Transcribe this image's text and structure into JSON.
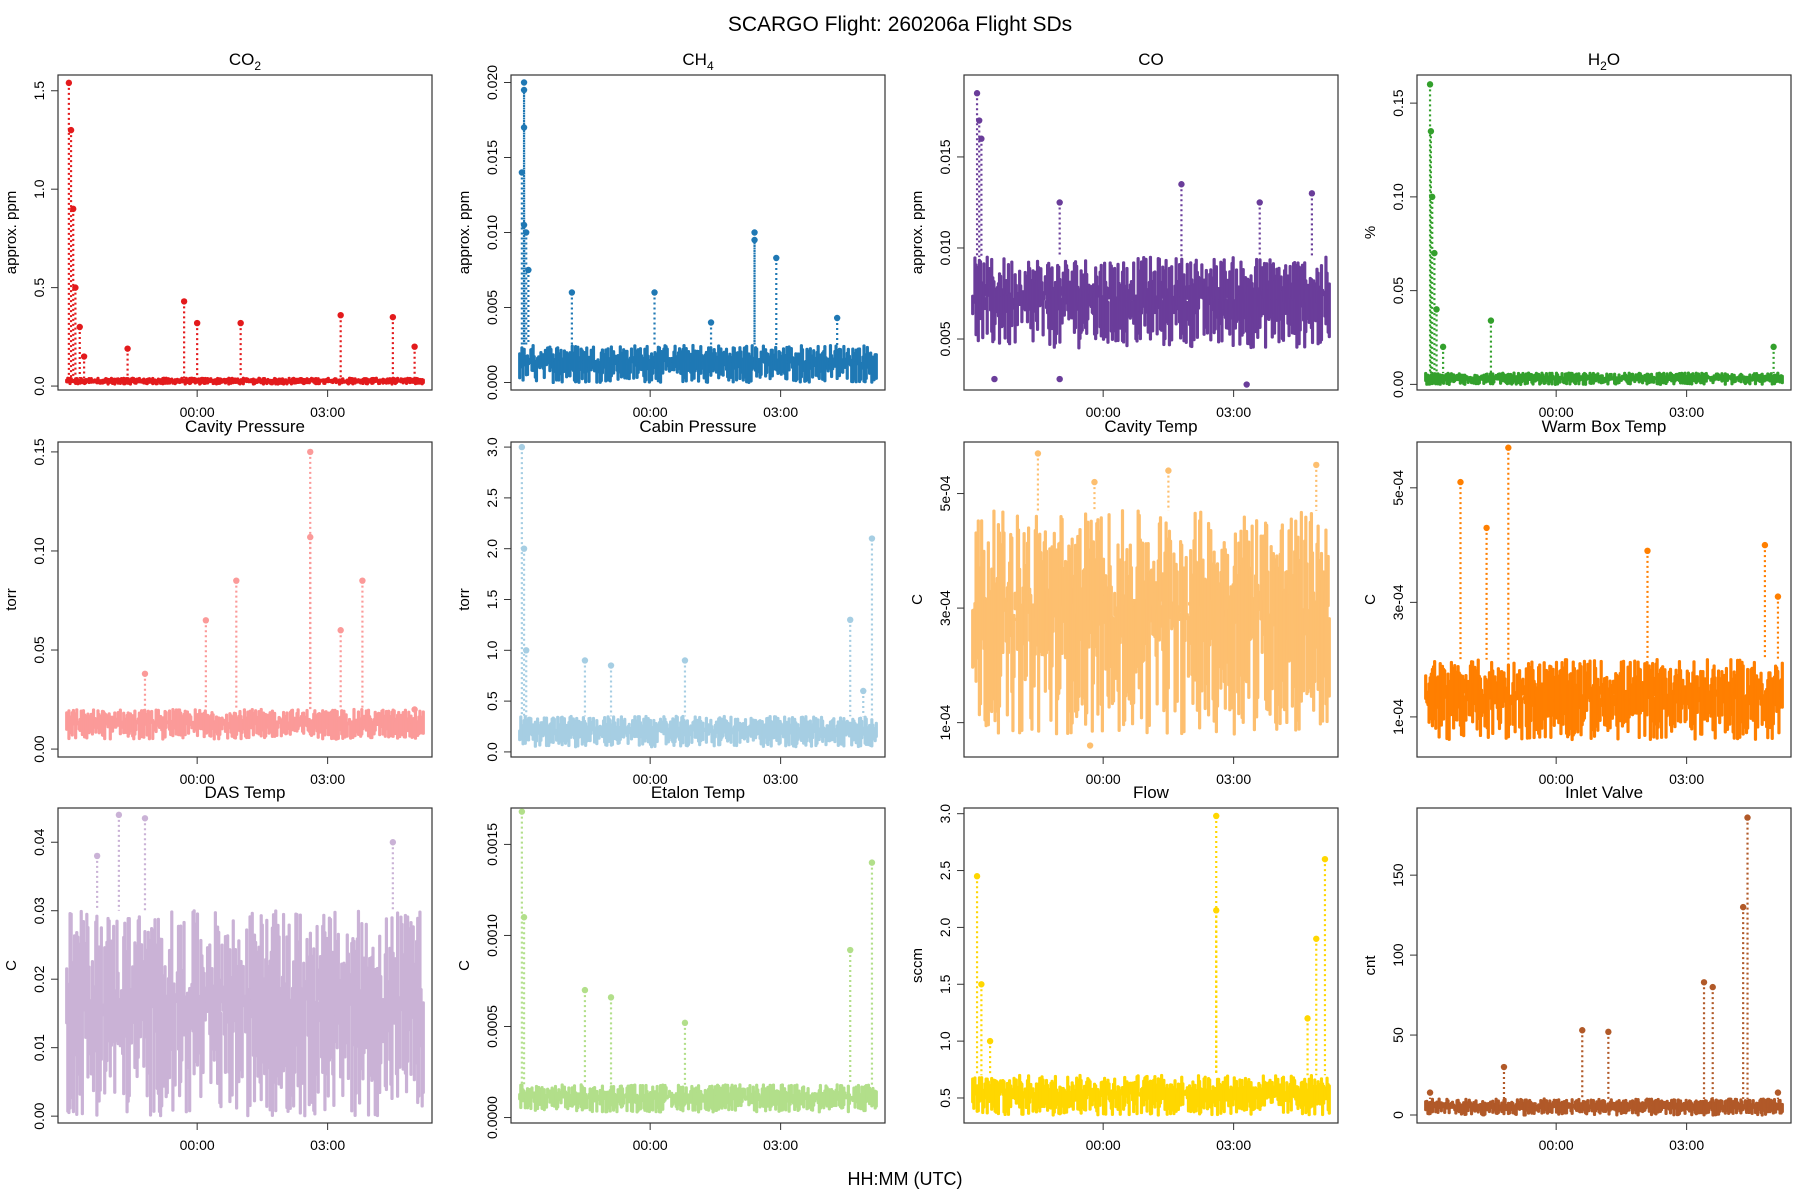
{
  "title": "SCARGO Flight: 260206a  Flight SDs",
  "xlabel": "HH:MM (UTC)",
  "x_tick_labels": [
    "00:00",
    "03:00"
  ],
  "chart_data": [
    {
      "type": "scatter",
      "title_main": "CO",
      "title_sub": "2",
      "ylabel": "approx. ppm",
      "color": "#e31a1c",
      "ylim": [
        -0.02,
        1.58
      ],
      "yticks": [
        0.0,
        0.5,
        1.0,
        1.5
      ],
      "ytick_labels": [
        "0.0",
        "0.5",
        "1.0",
        "1.5"
      ],
      "x_range_hours": [
        -3.2,
        5.4
      ],
      "x_ticks_hours": [
        0,
        3
      ],
      "baseline": [
        0.01,
        0.04
      ],
      "points": [
        [
          -2.95,
          1.54
        ],
        [
          -2.9,
          1.3
        ],
        [
          -2.85,
          0.9
        ],
        [
          -2.8,
          0.5
        ],
        [
          -2.7,
          0.3
        ],
        [
          -2.6,
          0.15
        ],
        [
          -1.6,
          0.19
        ],
        [
          -0.3,
          0.43
        ],
        [
          0.0,
          0.32
        ],
        [
          1.0,
          0.32
        ],
        [
          3.3,
          0.36
        ],
        [
          4.5,
          0.35
        ],
        [
          5.0,
          0.2
        ]
      ]
    },
    {
      "type": "scatter",
      "title_main": "CH",
      "title_sub": "4",
      "ylabel": "approx. ppm",
      "color": "#1f78b4",
      "ylim": [
        -0.0005,
        0.0205
      ],
      "yticks": [
        0.0,
        0.005,
        0.01,
        0.015,
        0.02
      ],
      "ytick_labels": [
        "0.000",
        "0.005",
        "0.010",
        "0.015",
        "0.020"
      ],
      "x_range_hours": [
        -3.2,
        5.4
      ],
      "x_ticks_hours": [
        0,
        3
      ],
      "baseline": [
        0.0,
        0.0025
      ],
      "points": [
        [
          -2.9,
          0.02
        ],
        [
          -2.9,
          0.0195
        ],
        [
          -2.9,
          0.017
        ],
        [
          -2.95,
          0.014
        ],
        [
          -2.9,
          0.0105
        ],
        [
          -2.85,
          0.01
        ],
        [
          -2.8,
          0.0075
        ],
        [
          -1.8,
          0.006
        ],
        [
          0.1,
          0.006
        ],
        [
          2.4,
          0.01
        ],
        [
          2.4,
          0.0095
        ],
        [
          2.9,
          0.0083
        ],
        [
          4.3,
          0.0043
        ],
        [
          1.4,
          0.004
        ]
      ]
    },
    {
      "type": "scatter",
      "title_main": "CO",
      "title_sub": "",
      "ylabel": "approx. ppm",
      "color": "#6a3d9a",
      "ylim": [
        0.0022,
        0.0195
      ],
      "yticks": [
        0.005,
        0.01,
        0.015
      ],
      "ytick_labels": [
        "0.005",
        "0.010",
        "0.015"
      ],
      "x_range_hours": [
        -3.2,
        5.4
      ],
      "x_ticks_hours": [
        0,
        3
      ],
      "baseline": [
        0.0045,
        0.0095
      ],
      "points": [
        [
          -2.9,
          0.0185
        ],
        [
          -2.85,
          0.017
        ],
        [
          -2.8,
          0.016
        ],
        [
          -1.0,
          0.0125
        ],
        [
          1.8,
          0.0135
        ],
        [
          3.6,
          0.0125
        ],
        [
          4.8,
          0.013
        ],
        [
          -1.0,
          0.0028
        ],
        [
          3.3,
          0.0025
        ],
        [
          -2.5,
          0.0028
        ]
      ]
    },
    {
      "type": "scatter",
      "title_main": "H",
      "title_sub": "2",
      "title_tail": "O",
      "ylabel": "%",
      "color": "#33a02c",
      "ylim": [
        -0.003,
        0.165
      ],
      "yticks": [
        0.0,
        0.05,
        0.1,
        0.15
      ],
      "ytick_labels": [
        "0.00",
        "0.05",
        "0.10",
        "0.15"
      ],
      "x_range_hours": [
        -3.2,
        5.4
      ],
      "x_ticks_hours": [
        0,
        3
      ],
      "baseline": [
        0.0,
        0.006
      ],
      "points": [
        [
          -2.9,
          0.16
        ],
        [
          -2.88,
          0.135
        ],
        [
          -2.85,
          0.1
        ],
        [
          -2.8,
          0.07
        ],
        [
          -2.75,
          0.04
        ],
        [
          -1.5,
          0.034
        ],
        [
          -2.6,
          0.02
        ],
        [
          5.0,
          0.02
        ]
      ]
    },
    {
      "type": "scatter",
      "title_main": "Cavity Pressure",
      "title_sub": "",
      "ylabel": "torr",
      "color": "#fb9a99",
      "ylim": [
        -0.004,
        0.155
      ],
      "yticks": [
        0.0,
        0.05,
        0.1,
        0.15
      ],
      "ytick_labels": [
        "0.00",
        "0.05",
        "0.10",
        "0.15"
      ],
      "x_range_hours": [
        -3.2,
        5.4
      ],
      "x_ticks_hours": [
        0,
        3
      ],
      "baseline": [
        0.005,
        0.02
      ],
      "points": [
        [
          2.6,
          0.15
        ],
        [
          2.6,
          0.107
        ],
        [
          0.9,
          0.085
        ],
        [
          3.8,
          0.085
        ],
        [
          0.2,
          0.065
        ],
        [
          -1.2,
          0.038
        ],
        [
          3.3,
          0.06
        ],
        [
          5.0,
          0.02
        ]
      ]
    },
    {
      "type": "scatter",
      "title_main": "Cabin Pressure",
      "title_sub": "",
      "ylabel": "torr",
      "color": "#a6cee3",
      "ylim": [
        -0.05,
        3.05
      ],
      "yticks": [
        0.0,
        0.5,
        1.0,
        1.5,
        2.0,
        2.5,
        3.0
      ],
      "ytick_labels": [
        "0.0",
        "0.5",
        "1.0",
        "1.5",
        "2.0",
        "2.5",
        "3.0"
      ],
      "x_range_hours": [
        -3.2,
        5.4
      ],
      "x_ticks_hours": [
        0,
        3
      ],
      "baseline": [
        0.05,
        0.35
      ],
      "points": [
        [
          -2.95,
          3.0
        ],
        [
          -2.9,
          2.0
        ],
        [
          -2.85,
          1.0
        ],
        [
          -1.5,
          0.9
        ],
        [
          -0.9,
          0.85
        ],
        [
          0.8,
          0.9
        ],
        [
          4.6,
          1.3
        ],
        [
          5.1,
          2.1
        ],
        [
          4.9,
          0.6
        ]
      ]
    },
    {
      "type": "scatter",
      "title_main": "Cavity Temp",
      "title_sub": "",
      "ylabel": "C",
      "color": "#fdbf6f",
      "ylim": [
        4e-05,
        0.00059
      ],
      "yticks": [
        0.0001,
        0.0003,
        0.0005
      ],
      "ytick_labels": [
        "1e-04",
        "3e-04",
        "5e-04"
      ],
      "x_range_hours": [
        -3.2,
        5.4
      ],
      "x_ticks_hours": [
        0,
        3
      ],
      "baseline": [
        8e-05,
        0.00047
      ],
      "points": [
        [
          -1.5,
          0.00057
        ],
        [
          1.5,
          0.00054
        ],
        [
          4.9,
          0.00055
        ],
        [
          -0.2,
          0.00052
        ],
        [
          -0.3,
          6e-05
        ]
      ]
    },
    {
      "type": "scatter",
      "title_main": "Warm Box Temp",
      "title_sub": "",
      "ylabel": "C",
      "color": "#ff7f00",
      "ylim": [
        3e-05,
        0.00058
      ],
      "yticks": [
        0.0001,
        0.0003,
        0.0005
      ],
      "ytick_labels": [
        "1e-04",
        "3e-04",
        "5e-04"
      ],
      "x_range_hours": [
        -3.2,
        5.4
      ],
      "x_ticks_hours": [
        0,
        3
      ],
      "baseline": [
        6e-05,
        0.0002
      ],
      "points": [
        [
          -1.1,
          0.00057
        ],
        [
          -2.2,
          0.00051
        ],
        [
          2.1,
          0.00039
        ],
        [
          4.8,
          0.0004
        ],
        [
          5.1,
          0.00031
        ],
        [
          -1.6,
          0.00043
        ]
      ]
    },
    {
      "type": "scatter",
      "title_main": "DAS Temp",
      "title_sub": "",
      "ylabel": "C",
      "color": "#cab2d6",
      "ylim": [
        -0.001,
        0.045
      ],
      "yticks": [
        0.0,
        0.01,
        0.02,
        0.03,
        0.04
      ],
      "ytick_labels": [
        "0.00",
        "0.01",
        "0.02",
        "0.03",
        "0.04"
      ],
      "x_range_hours": [
        -3.2,
        5.4
      ],
      "x_ticks_hours": [
        0,
        3
      ],
      "baseline": [
        0.0,
        0.03
      ],
      "points": [
        [
          -1.8,
          0.044
        ],
        [
          -1.2,
          0.0435
        ],
        [
          4.5,
          0.04
        ],
        [
          -2.3,
          0.038
        ]
      ]
    },
    {
      "type": "scatter",
      "title_main": "Etalon Temp",
      "title_sub": "",
      "ylabel": "C",
      "color": "#b2df8a",
      "ylim": [
        -3e-05,
        0.0017
      ],
      "yticks": [
        0.0,
        0.0005,
        0.001,
        0.0015
      ],
      "ytick_labels": [
        "0.0000",
        "0.0005",
        "0.0010",
        "0.0015"
      ],
      "x_range_hours": [
        -3.2,
        5.4
      ],
      "x_ticks_hours": [
        0,
        3
      ],
      "baseline": [
        3e-05,
        0.00018
      ],
      "points": [
        [
          -2.95,
          0.00168
        ],
        [
          -2.9,
          0.0011
        ],
        [
          -1.5,
          0.0007
        ],
        [
          -0.9,
          0.00066
        ],
        [
          5.1,
          0.0014
        ],
        [
          4.6,
          0.00092
        ],
        [
          0.8,
          0.00052
        ]
      ]
    },
    {
      "type": "scatter",
      "title_main": "Flow",
      "title_sub": "",
      "ylabel": "sccm",
      "color": "#ffd700",
      "ylim": [
        0.28,
        3.05
      ],
      "yticks": [
        0.5,
        1.0,
        1.5,
        2.0,
        2.5,
        3.0
      ],
      "ytick_labels": [
        "0.5",
        "1.0",
        "1.5",
        "2.0",
        "2.5",
        "3.0"
      ],
      "x_range_hours": [
        -3.2,
        5.4
      ],
      "x_ticks_hours": [
        0,
        3
      ],
      "baseline": [
        0.35,
        0.7
      ],
      "points": [
        [
          2.6,
          2.98
        ],
        [
          2.6,
          2.15
        ],
        [
          -2.9,
          2.45
        ],
        [
          -2.8,
          1.5
        ],
        [
          -2.6,
          1.0
        ],
        [
          5.1,
          2.6
        ],
        [
          4.9,
          1.9
        ],
        [
          4.7,
          1.2
        ]
      ]
    },
    {
      "type": "scatter",
      "title_main": "Inlet Valve",
      "title_sub": "",
      "ylabel": "cnt",
      "color": "#b15928",
      "ylim": [
        -5.0,
        192.0
      ],
      "yticks": [
        0,
        50,
        100,
        150
      ],
      "ytick_labels": [
        "0",
        "50",
        "100",
        "150"
      ],
      "x_range_hours": [
        -3.2,
        5.4
      ],
      "x_ticks_hours": [
        0,
        3
      ],
      "baseline": [
        0.0,
        10.0
      ],
      "points": [
        [
          4.4,
          186.0
        ],
        [
          4.3,
          130.0
        ],
        [
          3.4,
          83.0
        ],
        [
          3.6,
          80.0
        ],
        [
          0.6,
          53.0
        ],
        [
          1.2,
          52.0
        ],
        [
          -1.2,
          30.0
        ],
        [
          5.1,
          14.0
        ],
        [
          -2.9,
          14.0
        ]
      ]
    }
  ]
}
